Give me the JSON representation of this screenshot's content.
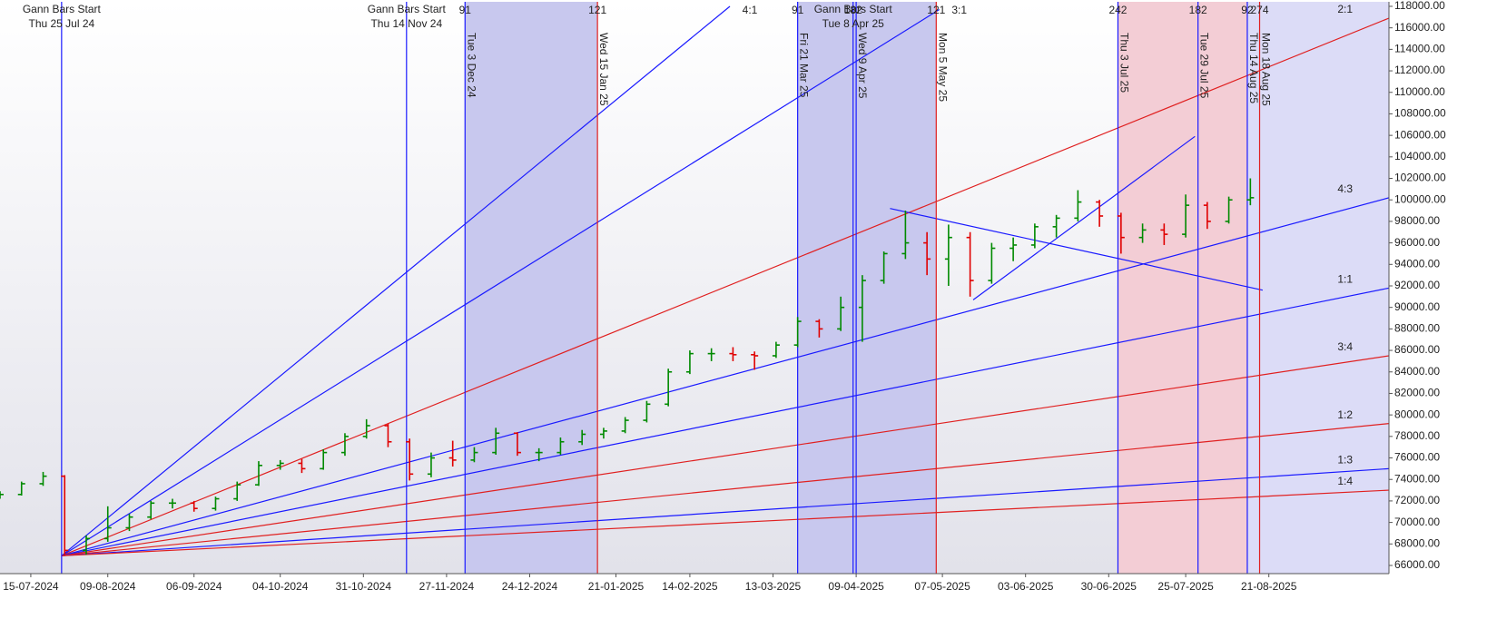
{
  "chart_data": {
    "type": "ohlc",
    "x": [
      "2024-07-05",
      "2024-07-12",
      "2024-07-19",
      "2024-07-26",
      "2024-08-02",
      "2024-08-09",
      "2024-08-16",
      "2024-08-23",
      "2024-08-30",
      "2024-09-06",
      "2024-09-13",
      "2024-09-20",
      "2024-09-27",
      "2024-10-04",
      "2024-10-11",
      "2024-10-18",
      "2024-10-25",
      "2024-11-01",
      "2024-11-08",
      "2024-11-15",
      "2024-11-22",
      "2024-11-29",
      "2024-12-06",
      "2024-12-13",
      "2024-12-20",
      "2024-12-27",
      "2025-01-03",
      "2025-01-10",
      "2025-01-17",
      "2025-01-24",
      "2025-01-31",
      "2025-02-07",
      "2025-02-14",
      "2025-02-21",
      "2025-02-28",
      "2025-03-07",
      "2025-03-14",
      "2025-03-21",
      "2025-03-28",
      "2025-04-04",
      "2025-04-11",
      "2025-04-18",
      "2025-04-25",
      "2025-05-02",
      "2025-05-09",
      "2025-05-16",
      "2025-05-23",
      "2025-05-30",
      "2025-06-06",
      "2025-06-13",
      "2025-06-20",
      "2025-06-27",
      "2025-07-04",
      "2025-07-11",
      "2025-07-18",
      "2025-07-25",
      "2025-08-01",
      "2025-08-08",
      "2025-08-15"
    ],
    "open": [
      72500,
      72600,
      73600,
      74300,
      67400,
      68500,
      69500,
      70500,
      71800,
      71800,
      71300,
      72200,
      73500,
      75300,
      75500,
      75000,
      76500,
      78000,
      79000,
      77500,
      74500,
      76000,
      75800,
      76500,
      78300,
      76500,
      76500,
      77500,
      78200,
      78500,
      79500,
      81000,
      84000,
      85700,
      85700,
      85600,
      85500,
      86500,
      88700,
      88000,
      90000,
      92500,
      95000,
      96000,
      94500,
      96500,
      92500,
      95500,
      95800,
      97500,
      98300,
      99800,
      98500,
      96500,
      97200,
      96800,
      99500,
      98000,
      100000
    ],
    "high": [
      72900,
      73800,
      74700,
      74400,
      68800,
      71500,
      70800,
      72000,
      72200,
      72000,
      72400,
      73800,
      75700,
      75800,
      75900,
      76800,
      78300,
      79600,
      79200,
      77800,
      76500,
      77600,
      77000,
      78800,
      78400,
      76900,
      77900,
      78600,
      78800,
      79800,
      81300,
      84300,
      86000,
      86200,
      86300,
      85900,
      86800,
      89100,
      88900,
      91000,
      93000,
      95200,
      99000,
      97000,
      97700,
      97000,
      96000,
      96500,
      97800,
      98600,
      100900,
      100000,
      98800,
      97800,
      97800,
      100500,
      99800,
      100300,
      102000
    ],
    "low": [
      72200,
      72500,
      73400,
      66900,
      67000,
      68200,
      69200,
      70300,
      71300,
      71000,
      71100,
      72000,
      73400,
      74900,
      74600,
      74900,
      76200,
      77800,
      77000,
      73900,
      74200,
      75200,
      75600,
      76300,
      76200,
      75700,
      76300,
      77200,
      77800,
      78300,
      79300,
      80800,
      83800,
      85000,
      85000,
      84200,
      85300,
      86300,
      87200,
      87800,
      86800,
      92200,
      94500,
      93000,
      92000,
      91000,
      92200,
      94300,
      95500,
      96500,
      98000,
      97500,
      95000,
      96000,
      95800,
      96500,
      97300,
      97800,
      99500
    ],
    "close": [
      72600,
      73600,
      74300,
      67400,
      68500,
      69500,
      70500,
      71800,
      71800,
      71300,
      72200,
      73500,
      75300,
      75500,
      75000,
      76500,
      78000,
      79000,
      77500,
      74500,
      76000,
      75800,
      76500,
      78300,
      76500,
      76500,
      77500,
      78200,
      78500,
      79500,
      81000,
      84000,
      85700,
      85700,
      85600,
      85500,
      86500,
      88700,
      88000,
      90000,
      92500,
      95000,
      96000,
      94500,
      96500,
      92500,
      95500,
      95800,
      97500,
      98300,
      99800,
      98500,
      96500,
      97200,
      96800,
      99500,
      98000,
      100000,
      100200
    ],
    "up_color": "#008a00",
    "down_color": "#e00000",
    "xlim": [
      "2024-07-05",
      "2025-09-29"
    ],
    "xticks": [
      {
        "value": "2024-07-15",
        "label": "15-07-2024"
      },
      {
        "value": "2024-08-09",
        "label": "09-08-2024"
      },
      {
        "value": "2024-09-06",
        "label": "06-09-2024"
      },
      {
        "value": "2024-10-04",
        "label": "04-10-2024"
      },
      {
        "value": "2024-10-31",
        "label": "31-10-2024"
      },
      {
        "value": "2024-11-27",
        "label": "27-11-2024"
      },
      {
        "value": "2024-12-24",
        "label": "24-12-2024"
      },
      {
        "value": "2025-01-21",
        "label": "21-01-2025"
      },
      {
        "value": "2025-02-14",
        "label": "14-02-2025"
      },
      {
        "value": "2025-03-13",
        "label": "13-03-2025"
      },
      {
        "value": "2025-04-09",
        "label": "09-04-2025"
      },
      {
        "value": "2025-05-07",
        "label": "07-05-2025"
      },
      {
        "value": "2025-06-03",
        "label": "03-06-2025"
      },
      {
        "value": "2025-06-30",
        "label": "30-06-2025"
      },
      {
        "value": "2025-07-25",
        "label": "25-07-2025"
      },
      {
        "value": "2025-08-21",
        "label": "21-08-2025"
      }
    ],
    "ylim": [
      65240,
      118420
    ],
    "yticks": [
      {
        "value": 66000,
        "label": "66000.00"
      },
      {
        "value": 68000,
        "label": "68000.00"
      },
      {
        "value": 70000,
        "label": "70000.00"
      },
      {
        "value": 72000,
        "label": "72000.00"
      },
      {
        "value": 74000,
        "label": "74000.00"
      },
      {
        "value": 76000,
        "label": "76000.00"
      },
      {
        "value": 78000,
        "label": "78000.00"
      },
      {
        "value": 80000,
        "label": "80000.00"
      },
      {
        "value": 82000,
        "label": "82000.00"
      },
      {
        "value": 84000,
        "label": "84000.00"
      },
      {
        "value": 86000,
        "label": "86000.00"
      },
      {
        "value": 88000,
        "label": "88000.00"
      },
      {
        "value": 90000,
        "label": "90000.00"
      },
      {
        "value": 92000,
        "label": "92000.00"
      },
      {
        "value": 94000,
        "label": "94000.00"
      },
      {
        "value": 96000,
        "label": "96000.00"
      },
      {
        "value": 98000,
        "label": "98000.00"
      },
      {
        "value": 100000,
        "label": "100000.00"
      },
      {
        "value": 102000,
        "label": "102000.00"
      },
      {
        "value": 104000,
        "label": "104000.00"
      },
      {
        "value": 106000,
        "label": "106000.00"
      },
      {
        "value": 108000,
        "label": "108000.00"
      },
      {
        "value": 110000,
        "label": "110000.00"
      },
      {
        "value": 112000,
        "label": "112000.00"
      },
      {
        "value": 114000,
        "label": "114000.00"
      },
      {
        "value": 116000,
        "label": "116000.00"
      },
      {
        "value": 118000,
        "label": "118000.00"
      }
    ],
    "grid": false,
    "regions": [
      {
        "from": "2024-12-03",
        "to": "2025-01-15",
        "color": "#c8c8ee"
      },
      {
        "from": "2025-03-21",
        "to": "2025-05-05",
        "color": "#c8c8ee"
      },
      {
        "from": "2025-07-03",
        "to": "2025-08-14",
        "color": "#f3cdd5"
      },
      {
        "from": "2025-08-14",
        "to": "2025-09-29",
        "color": "#dcdcf7"
      }
    ],
    "vertical_lines": [
      {
        "x": "2024-07-25",
        "title": "Gann Bars Start",
        "label": "Thu 25 Jul 24",
        "color": "#1a1aff"
      },
      {
        "x": "2024-11-14",
        "title": "Gann Bars Start",
        "label": "Thu 14 Nov 24",
        "color": "#1a1aff"
      },
      {
        "x": "2024-12-03",
        "label": "Tue 3 Dec 24",
        "count": 91,
        "color": "#1a1aff"
      },
      {
        "x": "2025-01-15",
        "label": "Wed 15 Jan 25",
        "count": 121,
        "color": "#e02020"
      },
      {
        "x": "2025-03-21",
        "label": "Fri 21 Mar 25",
        "count": 91,
        "color": "#1a1aff"
      },
      {
        "x": "2025-04-08",
        "title": "Gann Bars Start",
        "label": "Tue 8 Apr 25",
        "count": 182,
        "color": "#1a1aff"
      },
      {
        "x": "2025-04-09",
        "label": "Wed 9 Apr 25",
        "color": "#1a1aff"
      },
      {
        "x": "2025-05-05",
        "label": "Mon 5 May 25",
        "count": 121,
        "color": "#e02020"
      },
      {
        "x": "2025-07-03",
        "label": "Thu 3 Jul 25",
        "count": 242,
        "color": "#1a1aff"
      },
      {
        "x": "2025-07-29",
        "label": "Tue 29 Jul 25",
        "count": 182,
        "color": "#1a1aff"
      },
      {
        "x": "2025-08-14",
        "label": "Thu 14 Aug 25",
        "count": 92,
        "color": "#1a1aff"
      },
      {
        "x": "2025-08-18",
        "label": "Mon 18 Aug 25",
        "count": 274,
        "color": "#e02020"
      }
    ],
    "fan_lines": [
      {
        "label": "4:1",
        "color": "#1a1aff",
        "x": [
          "2024-07-25",
          "2025-02-27"
        ],
        "y": [
          66900,
          118000
        ]
      },
      {
        "label": "3:1",
        "color": "#1a1aff",
        "x": [
          "2024-07-25",
          "2025-05-06"
        ],
        "y": [
          66900,
          117700
        ]
      },
      {
        "label": "2:1",
        "color": "#e02020",
        "x": [
          "2024-07-25",
          "2025-09-29"
        ],
        "y": [
          66900,
          116900
        ]
      },
      {
        "label": "4:3",
        "color": "#1a1aff",
        "x": [
          "2024-07-25",
          "2025-09-29"
        ],
        "y": [
          66900,
          100200
        ]
      },
      {
        "label": "1:1",
        "color": "#1a1aff",
        "x": [
          "2024-07-25",
          "2025-09-29"
        ],
        "y": [
          66900,
          91800
        ]
      },
      {
        "label": "3:4",
        "color": "#e02020",
        "x": [
          "2024-07-25",
          "2025-09-29"
        ],
        "y": [
          66900,
          85500
        ]
      },
      {
        "label": "1:2",
        "color": "#e02020",
        "x": [
          "2024-07-25",
          "2025-09-29"
        ],
        "y": [
          66900,
          79200
        ]
      },
      {
        "label": "1:3",
        "color": "#1a1aff",
        "x": [
          "2024-07-25",
          "2025-09-29"
        ],
        "y": [
          66900,
          75000
        ]
      },
      {
        "label": "1:4",
        "color": "#e02020",
        "x": [
          "2024-07-25",
          "2025-09-29"
        ],
        "y": [
          66900,
          73000
        ]
      }
    ],
    "trend_lines": [
      {
        "color": "#1a1aff",
        "x": [
          "2025-05-17",
          "2025-07-28"
        ],
        "y": [
          90700,
          105900
        ]
      },
      {
        "color": "#1a1aff",
        "x": [
          "2025-04-20",
          "2025-08-19"
        ],
        "y": [
          99200,
          91600
        ]
      }
    ]
  }
}
